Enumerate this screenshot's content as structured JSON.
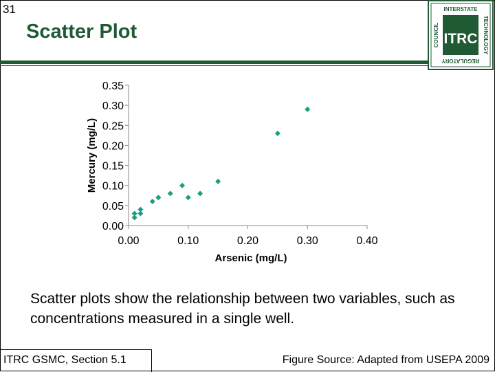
{
  "slide": {
    "number": "31",
    "title": "Scatter Plot",
    "caption": "Scatter plots show the relationship between two variables, such as concentrations measured in a single well.",
    "footer_left": "ITRC GSMC, Section 5.1",
    "footer_right": "Figure Source: Adapted from USEPA 2009"
  },
  "logo": {
    "main": "ITRC",
    "top": "INTERSTATE",
    "right": "TECHNOLOGY",
    "bottom": "REGULATORY",
    "left": "COUNCIL",
    "color": "#1f5a34"
  },
  "colors": {
    "title": "#1f5a34",
    "marker": "#15a083",
    "axis": "#888888"
  },
  "chart_data": {
    "type": "scatter",
    "xlabel": "Arsenic (mg/L)",
    "ylabel": "Mercury (mg/L)",
    "xlim": [
      0,
      0.4
    ],
    "ylim": [
      0,
      0.35
    ],
    "x_ticks": [
      "0.00",
      "0.10",
      "0.20",
      "0.30",
      "0.40"
    ],
    "y_ticks": [
      "0.00",
      "0.05",
      "0.10",
      "0.15",
      "0.20",
      "0.25",
      "0.30",
      "0.35"
    ],
    "grid": false,
    "series": [
      {
        "points": [
          [
            0.01,
            0.02
          ],
          [
            0.01,
            0.03
          ],
          [
            0.02,
            0.03
          ],
          [
            0.02,
            0.04
          ],
          [
            0.04,
            0.06
          ],
          [
            0.05,
            0.07
          ],
          [
            0.07,
            0.08
          ],
          [
            0.09,
            0.1
          ],
          [
            0.1,
            0.07
          ],
          [
            0.12,
            0.08
          ],
          [
            0.15,
            0.11
          ],
          [
            0.25,
            0.23
          ],
          [
            0.3,
            0.29
          ]
        ]
      }
    ]
  }
}
